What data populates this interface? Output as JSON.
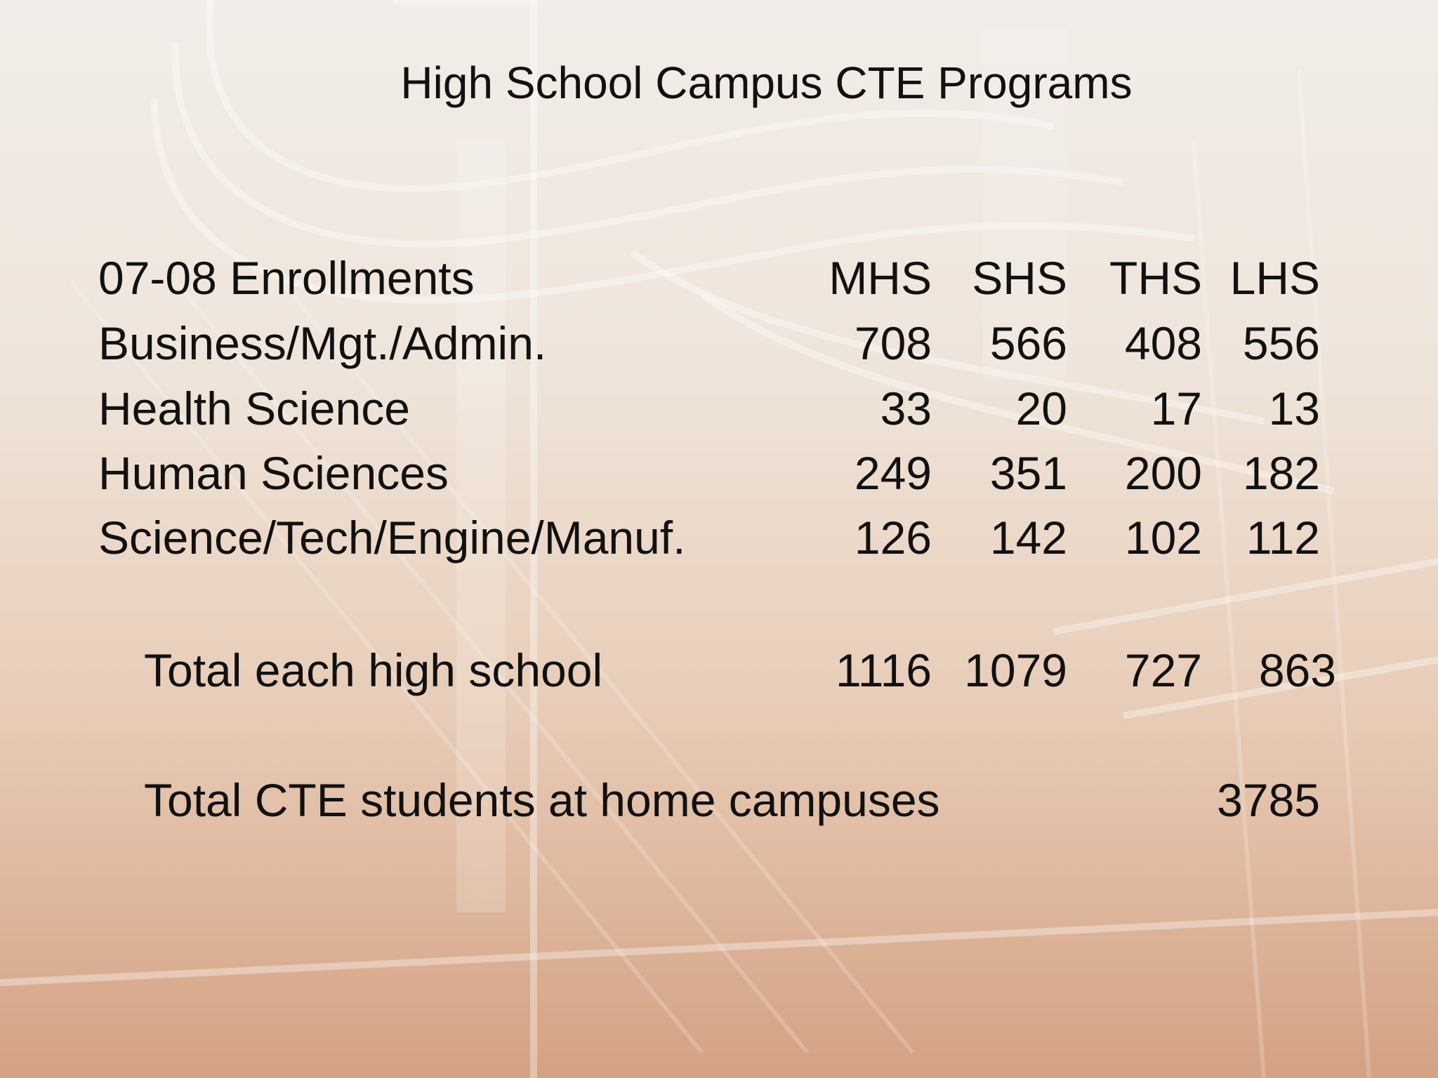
{
  "slide": {
    "title": "High School Campus CTE Programs"
  },
  "table": {
    "header": {
      "label": "07-08 Enrollments",
      "columns": [
        "MHS",
        "SHS",
        "THS",
        "LHS"
      ]
    },
    "rows": [
      {
        "label": "Business/Mgt./Admin.",
        "values": [
          "708",
          "566",
          "408",
          "556"
        ]
      },
      {
        "label": "Health Science",
        "values": [
          "33",
          "20",
          "17",
          "13"
        ]
      },
      {
        "label": "Human Sciences",
        "values": [
          "249",
          "351",
          "200",
          "182"
        ]
      },
      {
        "label": "Science/Tech/Engine/Manuf.",
        "values": [
          "126",
          "142",
          "102",
          "112"
        ]
      }
    ],
    "totals": {
      "label": "Total each high school",
      "values": [
        "1116",
        "1079",
        "727",
        "863"
      ]
    },
    "grand_total": {
      "label": "Total CTE students at home campuses",
      "value": "3785"
    }
  }
}
